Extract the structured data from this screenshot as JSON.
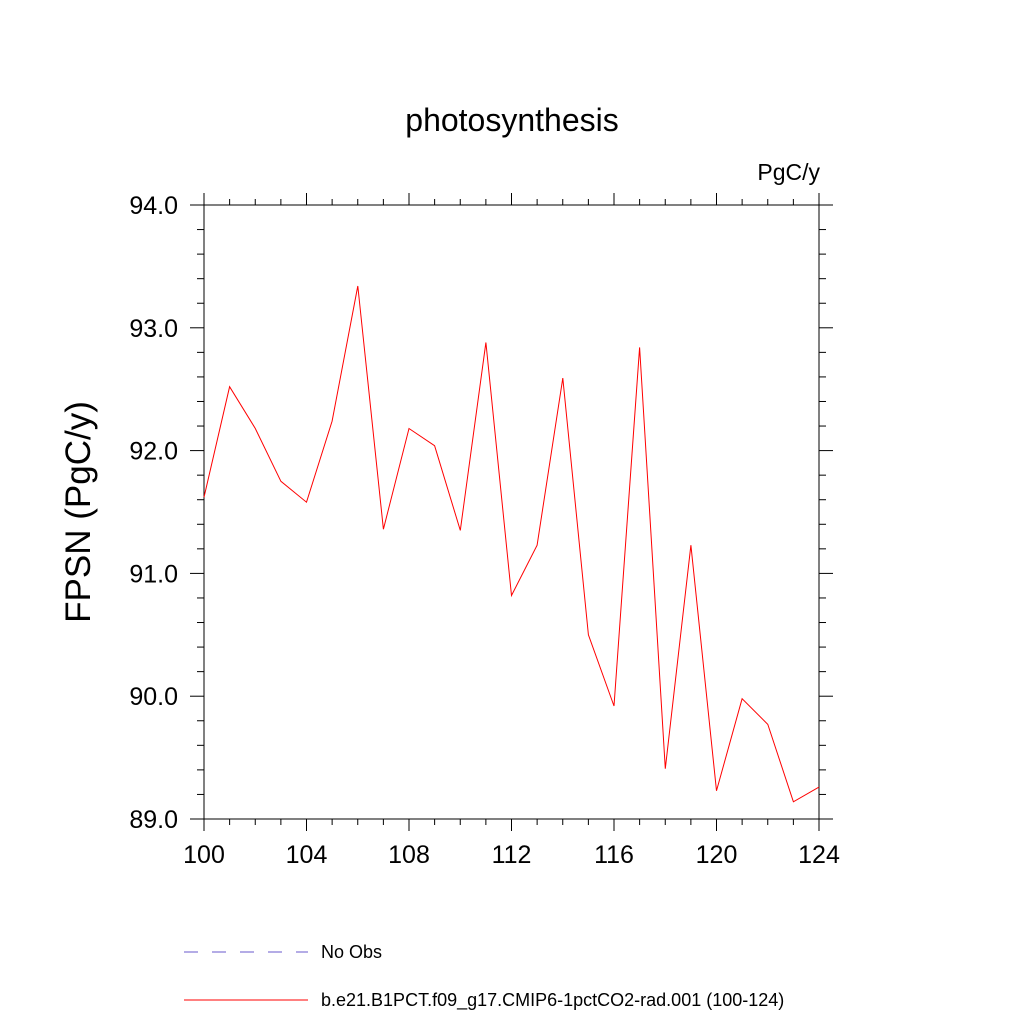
{
  "chart_data": {
    "type": "line",
    "title": "photosynthesis",
    "units": "PgC/y",
    "xlabel": "",
    "ylabel": "FPSN  (PgC/y)",
    "xlim": [
      100,
      124
    ],
    "ylim": [
      89.0,
      94.0
    ],
    "xticks": [
      100,
      104,
      108,
      112,
      116,
      120,
      124
    ],
    "xtick_labels": [
      "100",
      "104",
      "108",
      "112",
      "116",
      "120",
      "124"
    ],
    "yticks": [
      89.0,
      90.0,
      91.0,
      92.0,
      93.0,
      94.0
    ],
    "ytick_labels": [
      "89.0",
      "90.0",
      "91.0",
      "92.0",
      "93.0",
      "94.0"
    ],
    "grid": false,
    "legend_position": "bottom",
    "series": [
      {
        "name": "b.e21.B1PCT.f09_g17.CMIP6-1pctCO2-rad.001 (100-124)",
        "color": "#ff0000",
        "style": "solid",
        "x": [
          100,
          101,
          102,
          103,
          104,
          105,
          106,
          107,
          108,
          109,
          110,
          111,
          112,
          113,
          114,
          115,
          116,
          117,
          118,
          119,
          120,
          121,
          122,
          123,
          124
        ],
        "y": [
          91.62,
          92.52,
          92.18,
          91.75,
          91.58,
          92.24,
          93.34,
          91.36,
          92.18,
          92.04,
          91.35,
          92.88,
          90.82,
          91.23,
          92.59,
          90.5,
          89.92,
          92.84,
          89.41,
          91.23,
          89.23,
          89.98,
          89.77,
          89.14,
          89.26
        ]
      }
    ],
    "legend": [
      {
        "label": "No Obs",
        "color": "#6a5acd",
        "style": "dashed"
      },
      {
        "label": "b.e21.B1PCT.f09_g17.CMIP6-1pctCO2-rad.001 (100-124)",
        "color": "#ff0000",
        "style": "solid"
      }
    ]
  }
}
